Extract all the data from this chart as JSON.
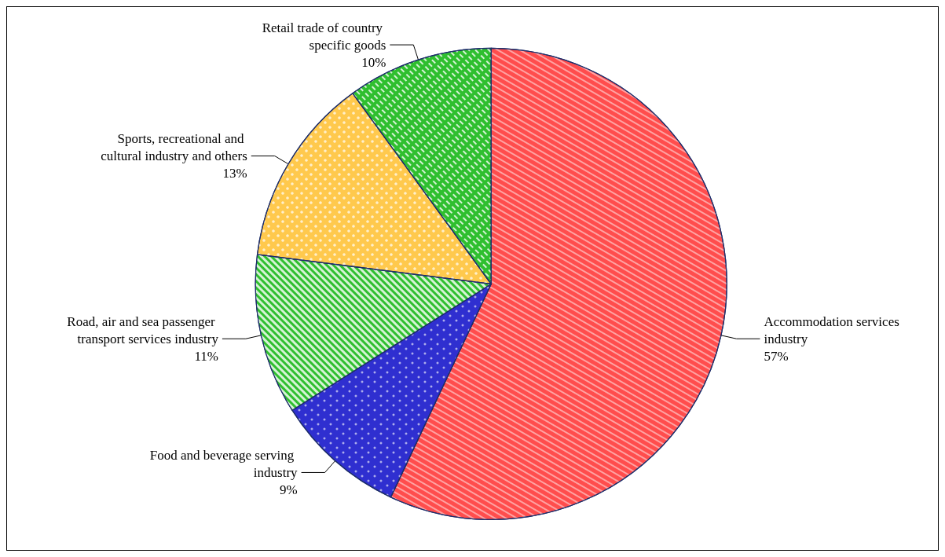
{
  "chart_data": {
    "type": "pie",
    "categories": [
      "Accommodation services industry",
      "Food and beverage serving industry",
      "Road, air and sea passenger transport services industry",
      "Sports, recreational and cultural industry and others",
      "Retail trade of country specific goods"
    ],
    "values": [
      57,
      9,
      11,
      13,
      10
    ],
    "value_labels": [
      "57%",
      "9%",
      "11%",
      "13%",
      "10%"
    ],
    "colors": [
      "#ff4d4d",
      "#2f2fd0",
      "#2fbf2f",
      "#ffc94d",
      "#2fbf2f"
    ],
    "legend": false
  }
}
